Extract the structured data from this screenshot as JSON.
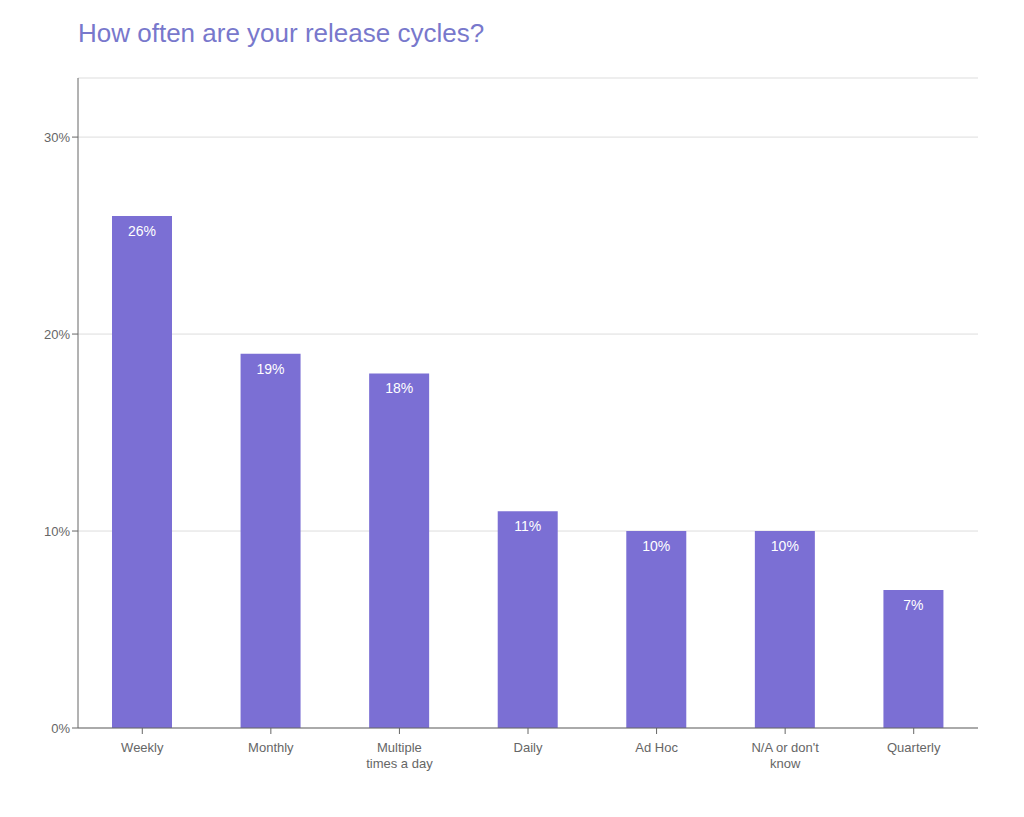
{
  "chart_data": {
    "type": "bar",
    "title": "How often are your release cycles?",
    "categories": [
      "Weekly",
      "Monthly",
      "Multiple\ntimes a day",
      "Daily",
      "Ad Hoc",
      "N/A or don't\nknow",
      "Quarterly"
    ],
    "values": [
      26,
      19,
      18,
      11,
      10,
      10,
      7
    ],
    "value_labels": [
      "26%",
      "19%",
      "18%",
      "11%",
      "10%",
      "10%",
      "7%"
    ],
    "data_labels": true,
    "color": "#7B6FD4",
    "ylim": [
      0,
      33
    ],
    "yticks": [
      {
        "value": 0,
        "label": "0%"
      },
      {
        "value": 10,
        "label": "10%"
      },
      {
        "value": 20,
        "label": "20%"
      },
      {
        "value": 30,
        "label": "30%"
      }
    ],
    "grid": true
  }
}
